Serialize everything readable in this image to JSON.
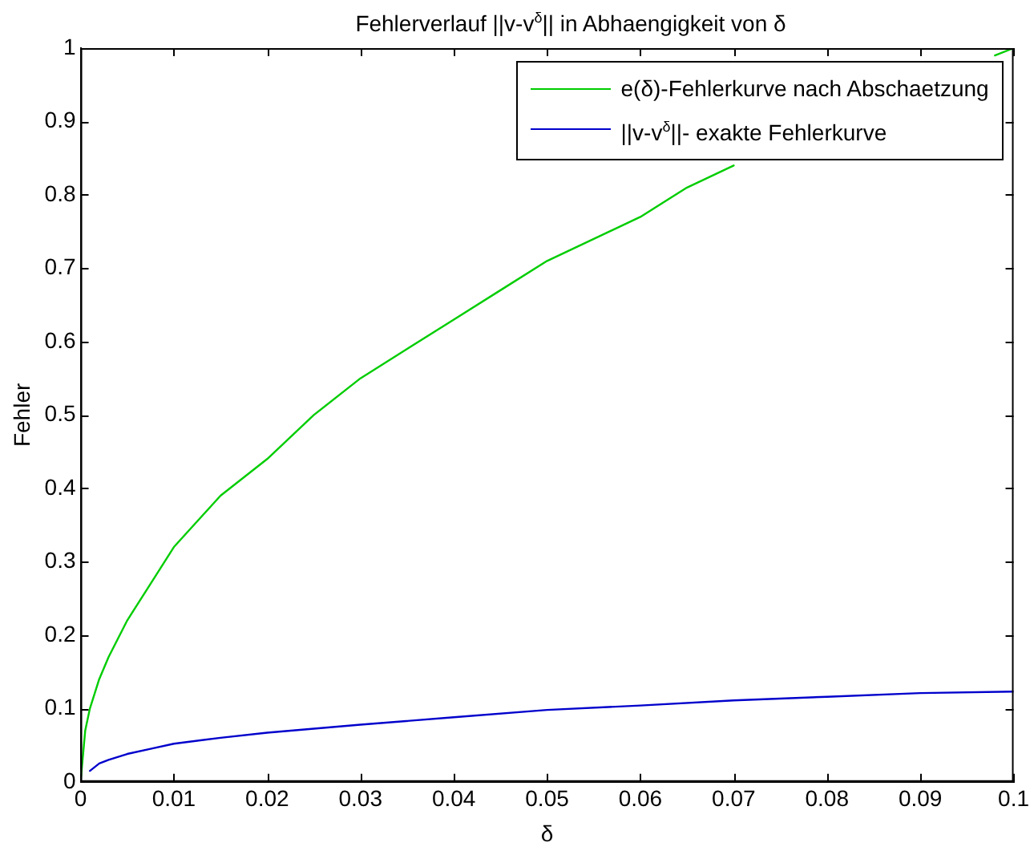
{
  "chart_data": {
    "type": "line",
    "title": "Fehlerverlauf ||v-v$^{δ}$|| in Abhaengigkeit von δ",
    "xlabel": "δ",
    "ylabel": "Fehler",
    "xlim": [
      0,
      0.1
    ],
    "xticks": [
      0,
      0.01,
      0.02,
      0.03,
      0.04,
      0.05,
      0.06,
      0.07,
      0.08,
      0.09,
      0.1
    ],
    "ylim": [
      0,
      1
    ],
    "yticks": [
      0,
      0.1,
      0.2,
      0.3,
      0.4,
      0.5,
      0.6,
      0.7,
      0.8,
      0.9,
      1
    ],
    "grid": false,
    "legend": "top right",
    "marker": "none",
    "line_style": "solid",
    "series": [
      {
        "name": "e(δ)-Fehlerkurve nach Abschaetzung",
        "color": "#00cc00",
        "x": [
          0,
          0.0005,
          0.001,
          0.002,
          0.003,
          0.005,
          0.0075,
          0.01,
          0.015,
          0.02,
          0.025,
          0.03,
          0.035,
          0.04,
          0.045,
          0.05,
          0.055,
          0.06,
          0.065,
          0.07,
          0.075,
          0.08,
          0.085,
          0.09,
          0.095,
          0.098,
          0.1
        ],
        "values": [
          0,
          0.07,
          0.1,
          0.14,
          0.17,
          0.22,
          0.27,
          0.32,
          0.39,
          0.44,
          0.5,
          0.55,
          0.59,
          0.63,
          0.67,
          0.71,
          0.74,
          0.77,
          0.81,
          0.84,
          null,
          null,
          null,
          null,
          null,
          0.99,
          1.0
        ]
      },
      {
        "name": "||v-v$^{δ}$||- exakte Fehlerkurve",
        "color": "#0000cc",
        "x": [
          0.001,
          0.002,
          0.003,
          0.005,
          0.0075,
          0.01,
          0.015,
          0.02,
          0.03,
          0.04,
          0.05,
          0.06,
          0.07,
          0.08,
          0.09,
          0.1
        ],
        "values": [
          0.015,
          0.025,
          0.03,
          0.038,
          0.045,
          0.052,
          0.06,
          0.067,
          0.078,
          0.088,
          0.098,
          0.104,
          0.111,
          0.116,
          0.121,
          0.123
        ]
      }
    ]
  }
}
